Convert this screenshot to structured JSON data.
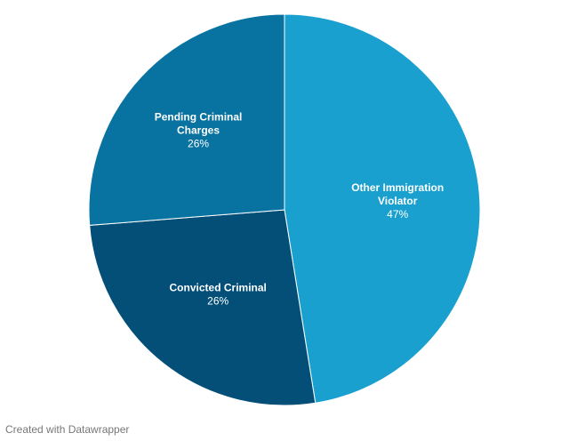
{
  "chart_data": {
    "type": "pie",
    "slices": [
      {
        "label": [
          "Other Immigration",
          "Violator"
        ],
        "value": 47,
        "value_label": "47%",
        "color": "#1aa0cf"
      },
      {
        "label": [
          "Convicted Criminal"
        ],
        "value": 26,
        "value_label": "26%",
        "color": "#034f78"
      },
      {
        "label": [
          "Pending Criminal",
          "Charges"
        ],
        "value": 26,
        "value_label": "26%",
        "color": "#0872a0"
      }
    ],
    "start": "top",
    "direction": "clockwise",
    "legend": "none"
  },
  "footer": {
    "credit": "Created with Datawrapper"
  }
}
